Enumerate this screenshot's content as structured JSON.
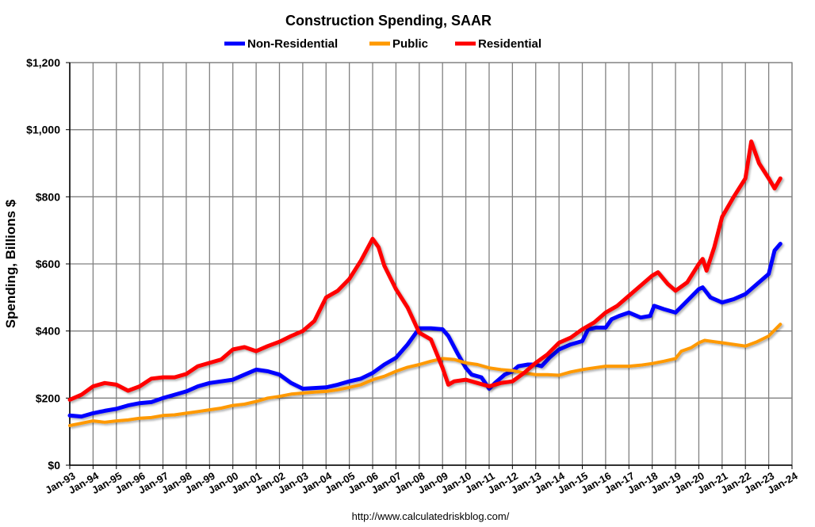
{
  "chart_data": {
    "type": "line",
    "title": "Construction Spending, SAAR",
    "ylabel": "Spending, Billions $",
    "xlabel": "",
    "source": "http://www.calculatedriskblog.com/",
    "ylim": [
      0,
      1200
    ],
    "xlim": [
      "1993-01",
      "2024-01"
    ],
    "grid": true,
    "legend_position": "top",
    "y_ticks": [
      "$0",
      "$200",
      "$400",
      "$600",
      "$800",
      "$1,000",
      "$1,200"
    ],
    "y_tick_values": [
      0,
      200,
      400,
      600,
      800,
      1000,
      1200
    ],
    "x_ticks": [
      "Jan-93",
      "Jan-94",
      "Jan-95",
      "Jan-96",
      "Jan-97",
      "Jan-98",
      "Jan-99",
      "Jan-00",
      "Jan-01",
      "Jan-02",
      "Jan-03",
      "Jan-04",
      "Jan-05",
      "Jan-06",
      "Jan-07",
      "Jan-08",
      "Jan-09",
      "Jan-10",
      "Jan-11",
      "Jan-12",
      "Jan-13",
      "Jan-14",
      "Jan-15",
      "Jan-16",
      "Jan-17",
      "Jan-18",
      "Jan-19",
      "Jan-20",
      "Jan-21",
      "Jan-22",
      "Jan-23",
      "Jan-24"
    ],
    "series": [
      {
        "name": "Non-Residential",
        "color": "#0000ff",
        "points": [
          [
            "1993-01",
            148
          ],
          [
            "1993-07",
            145
          ],
          [
            "1994-01",
            155
          ],
          [
            "1994-07",
            162
          ],
          [
            "1995-01",
            168
          ],
          [
            "1995-07",
            178
          ],
          [
            "1996-01",
            185
          ],
          [
            "1996-07",
            188
          ],
          [
            "1997-01",
            200
          ],
          [
            "1997-07",
            210
          ],
          [
            "1998-01",
            220
          ],
          [
            "1998-07",
            235
          ],
          [
            "1999-01",
            245
          ],
          [
            "1999-07",
            250
          ],
          [
            "2000-01",
            255
          ],
          [
            "2000-07",
            270
          ],
          [
            "2001-01",
            285
          ],
          [
            "2001-07",
            280
          ],
          [
            "2002-01",
            270
          ],
          [
            "2002-07",
            245
          ],
          [
            "2003-01",
            228
          ],
          [
            "2003-07",
            230
          ],
          [
            "2004-01",
            232
          ],
          [
            "2004-07",
            240
          ],
          [
            "2005-01",
            250
          ],
          [
            "2005-07",
            258
          ],
          [
            "2006-01",
            275
          ],
          [
            "2006-07",
            300
          ],
          [
            "2007-01",
            320
          ],
          [
            "2007-07",
            360
          ],
          [
            "2008-01",
            408
          ],
          [
            "2008-07",
            408
          ],
          [
            "2009-01",
            405
          ],
          [
            "2009-04",
            385
          ],
          [
            "2009-09",
            330
          ],
          [
            "2010-01",
            290
          ],
          [
            "2010-04",
            270
          ],
          [
            "2010-09",
            262
          ],
          [
            "2011-01",
            228
          ],
          [
            "2011-04",
            245
          ],
          [
            "2011-09",
            270
          ],
          [
            "2012-01",
            280
          ],
          [
            "2012-04",
            295
          ],
          [
            "2012-09",
            300
          ],
          [
            "2013-01",
            300
          ],
          [
            "2013-04",
            295
          ],
          [
            "2013-08",
            320
          ],
          [
            "2014-01",
            345
          ],
          [
            "2014-07",
            360
          ],
          [
            "2015-01",
            370
          ],
          [
            "2015-04",
            405
          ],
          [
            "2015-08",
            410
          ],
          [
            "2016-01",
            410
          ],
          [
            "2016-04",
            435
          ],
          [
            "2016-08",
            445
          ],
          [
            "2017-01",
            455
          ],
          [
            "2017-07",
            440
          ],
          [
            "2017-12",
            445
          ],
          [
            "2018-02",
            475
          ],
          [
            "2018-07",
            465
          ],
          [
            "2019-01",
            455
          ],
          [
            "2019-07",
            490
          ],
          [
            "2020-01",
            525
          ],
          [
            "2020-03",
            530
          ],
          [
            "2020-07",
            500
          ],
          [
            "2021-01",
            485
          ],
          [
            "2021-07",
            495
          ],
          [
            "2022-01",
            510
          ],
          [
            "2022-07",
            540
          ],
          [
            "2023-01",
            570
          ],
          [
            "2023-04",
            640
          ],
          [
            "2023-07",
            660
          ]
        ]
      },
      {
        "name": "Public",
        "color": "#ff9900",
        "points": [
          [
            "1993-01",
            118
          ],
          [
            "1993-07",
            125
          ],
          [
            "1994-01",
            132
          ],
          [
            "1994-07",
            128
          ],
          [
            "1995-01",
            132
          ],
          [
            "1995-07",
            135
          ],
          [
            "1996-01",
            140
          ],
          [
            "1996-07",
            142
          ],
          [
            "1997-01",
            148
          ],
          [
            "1997-07",
            150
          ],
          [
            "1998-01",
            155
          ],
          [
            "1998-07",
            160
          ],
          [
            "1999-01",
            165
          ],
          [
            "1999-07",
            170
          ],
          [
            "2000-01",
            178
          ],
          [
            "2000-07",
            182
          ],
          [
            "2001-01",
            190
          ],
          [
            "2001-07",
            200
          ],
          [
            "2002-01",
            205
          ],
          [
            "2002-07",
            212
          ],
          [
            "2003-01",
            215
          ],
          [
            "2003-07",
            218
          ],
          [
            "2004-01",
            220
          ],
          [
            "2004-07",
            225
          ],
          [
            "2005-01",
            232
          ],
          [
            "2005-07",
            240
          ],
          [
            "2006-01",
            255
          ],
          [
            "2006-07",
            265
          ],
          [
            "2007-01",
            280
          ],
          [
            "2007-07",
            292
          ],
          [
            "2008-01",
            300
          ],
          [
            "2008-07",
            310
          ],
          [
            "2009-01",
            318
          ],
          [
            "2009-07",
            315
          ],
          [
            "2010-01",
            305
          ],
          [
            "2010-07",
            300
          ],
          [
            "2011-01",
            290
          ],
          [
            "2011-07",
            285
          ],
          [
            "2012-01",
            282
          ],
          [
            "2012-07",
            275
          ],
          [
            "2013-01",
            270
          ],
          [
            "2013-07",
            270
          ],
          [
            "2014-01",
            268
          ],
          [
            "2014-07",
            278
          ],
          [
            "2015-01",
            285
          ],
          [
            "2015-07",
            290
          ],
          [
            "2016-01",
            295
          ],
          [
            "2016-07",
            295
          ],
          [
            "2017-01",
            295
          ],
          [
            "2017-07",
            298
          ],
          [
            "2018-01",
            303
          ],
          [
            "2018-07",
            310
          ],
          [
            "2019-01",
            318
          ],
          [
            "2019-04",
            340
          ],
          [
            "2019-09",
            350
          ],
          [
            "2020-01",
            365
          ],
          [
            "2020-04",
            372
          ],
          [
            "2020-09",
            368
          ],
          [
            "2021-01",
            365
          ],
          [
            "2021-07",
            360
          ],
          [
            "2022-01",
            355
          ],
          [
            "2022-07",
            368
          ],
          [
            "2023-01",
            385
          ],
          [
            "2023-07",
            420
          ]
        ]
      },
      {
        "name": "Residential",
        "color": "#ff0000",
        "points": [
          [
            "1993-01",
            195
          ],
          [
            "1993-07",
            210
          ],
          [
            "1994-01",
            235
          ],
          [
            "1994-07",
            245
          ],
          [
            "1995-01",
            240
          ],
          [
            "1995-07",
            222
          ],
          [
            "1996-01",
            235
          ],
          [
            "1996-07",
            258
          ],
          [
            "1997-01",
            262
          ],
          [
            "1997-07",
            262
          ],
          [
            "1998-01",
            272
          ],
          [
            "1998-07",
            295
          ],
          [
            "1999-01",
            305
          ],
          [
            "1999-07",
            315
          ],
          [
            "2000-01",
            345
          ],
          [
            "2000-07",
            352
          ],
          [
            "2001-01",
            340
          ],
          [
            "2001-07",
            355
          ],
          [
            "2002-01",
            368
          ],
          [
            "2002-07",
            385
          ],
          [
            "2003-01",
            400
          ],
          [
            "2003-07",
            430
          ],
          [
            "2004-01",
            500
          ],
          [
            "2004-07",
            520
          ],
          [
            "2005-01",
            555
          ],
          [
            "2005-07",
            610
          ],
          [
            "2006-01",
            675
          ],
          [
            "2006-04",
            650
          ],
          [
            "2006-07",
            595
          ],
          [
            "2007-01",
            525
          ],
          [
            "2007-07",
            470
          ],
          [
            "2008-01",
            395
          ],
          [
            "2008-07",
            375
          ],
          [
            "2009-01",
            290
          ],
          [
            "2009-04",
            240
          ],
          [
            "2009-07",
            250
          ],
          [
            "2010-01",
            255
          ],
          [
            "2010-07",
            245
          ],
          [
            "2011-01",
            235
          ],
          [
            "2011-07",
            245
          ],
          [
            "2012-01",
            250
          ],
          [
            "2012-07",
            275
          ],
          [
            "2013-01",
            305
          ],
          [
            "2013-07",
            330
          ],
          [
            "2014-01",
            365
          ],
          [
            "2014-07",
            380
          ],
          [
            "2015-01",
            405
          ],
          [
            "2015-07",
            425
          ],
          [
            "2016-01",
            455
          ],
          [
            "2016-07",
            475
          ],
          [
            "2017-01",
            505
          ],
          [
            "2017-07",
            535
          ],
          [
            "2018-01",
            565
          ],
          [
            "2018-04",
            575
          ],
          [
            "2018-09",
            540
          ],
          [
            "2019-01",
            520
          ],
          [
            "2019-07",
            545
          ],
          [
            "2020-01",
            600
          ],
          [
            "2020-03",
            615
          ],
          [
            "2020-05",
            580
          ],
          [
            "2020-09",
            650
          ],
          [
            "2021-01",
            740
          ],
          [
            "2021-07",
            800
          ],
          [
            "2022-01",
            855
          ],
          [
            "2022-04",
            965
          ],
          [
            "2022-08",
            900
          ],
          [
            "2023-01",
            855
          ],
          [
            "2023-04",
            825
          ],
          [
            "2023-07",
            855
          ]
        ]
      }
    ]
  }
}
